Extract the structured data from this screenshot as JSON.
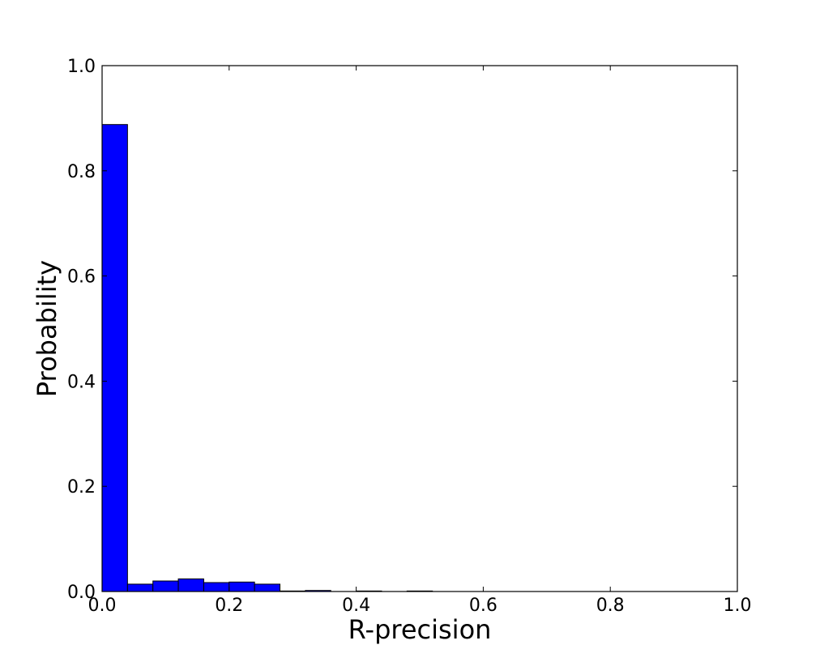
{
  "chart_data": {
    "type": "bar",
    "title": "",
    "xlabel": "R-precision",
    "ylabel": "Probability",
    "xlim": [
      0.0,
      1.0
    ],
    "ylim": [
      0.0,
      1.0
    ],
    "xticks": [
      "0.0",
      "0.2",
      "0.4",
      "0.6",
      "0.8",
      "1.0"
    ],
    "yticks": [
      "0.0",
      "0.2",
      "0.4",
      "0.6",
      "0.8",
      "1.0"
    ],
    "grid": false,
    "bar_color": "#0000ff",
    "edge_color": "#000000",
    "bins": [
      {
        "x0": 0.0,
        "x1": 0.04,
        "value": 0.888
      },
      {
        "x0": 0.04,
        "x1": 0.08,
        "value": 0.014
      },
      {
        "x0": 0.08,
        "x1": 0.12,
        "value": 0.02
      },
      {
        "x0": 0.12,
        "x1": 0.16,
        "value": 0.024
      },
      {
        "x0": 0.16,
        "x1": 0.2,
        "value": 0.017
      },
      {
        "x0": 0.2,
        "x1": 0.24,
        "value": 0.018
      },
      {
        "x0": 0.24,
        "x1": 0.28,
        "value": 0.014
      },
      {
        "x0": 0.28,
        "x1": 0.32,
        "value": 0.001
      },
      {
        "x0": 0.32,
        "x1": 0.36,
        "value": 0.002
      },
      {
        "x0": 0.36,
        "x1": 0.4,
        "value": 0.0
      },
      {
        "x0": 0.4,
        "x1": 0.44,
        "value": 0.001
      },
      {
        "x0": 0.44,
        "x1": 0.48,
        "value": 0.0
      },
      {
        "x0": 0.48,
        "x1": 0.52,
        "value": 0.001
      },
      {
        "x0": 0.52,
        "x1": 0.56,
        "value": 0.0
      },
      {
        "x0": 0.56,
        "x1": 0.6,
        "value": 0.0
      },
      {
        "x0": 0.6,
        "x1": 0.64,
        "value": 0.0
      },
      {
        "x0": 0.64,
        "x1": 0.68,
        "value": 0.0
      },
      {
        "x0": 0.68,
        "x1": 0.72,
        "value": 0.0
      },
      {
        "x0": 0.72,
        "x1": 0.76,
        "value": 0.0
      },
      {
        "x0": 0.76,
        "x1": 0.8,
        "value": 0.0
      },
      {
        "x0": 0.8,
        "x1": 0.84,
        "value": 0.0
      },
      {
        "x0": 0.84,
        "x1": 0.88,
        "value": 0.0
      },
      {
        "x0": 0.88,
        "x1": 0.92,
        "value": 0.0
      },
      {
        "x0": 0.92,
        "x1": 0.96,
        "value": 0.0
      },
      {
        "x0": 0.96,
        "x1": 1.0,
        "value": 0.0
      }
    ]
  }
}
